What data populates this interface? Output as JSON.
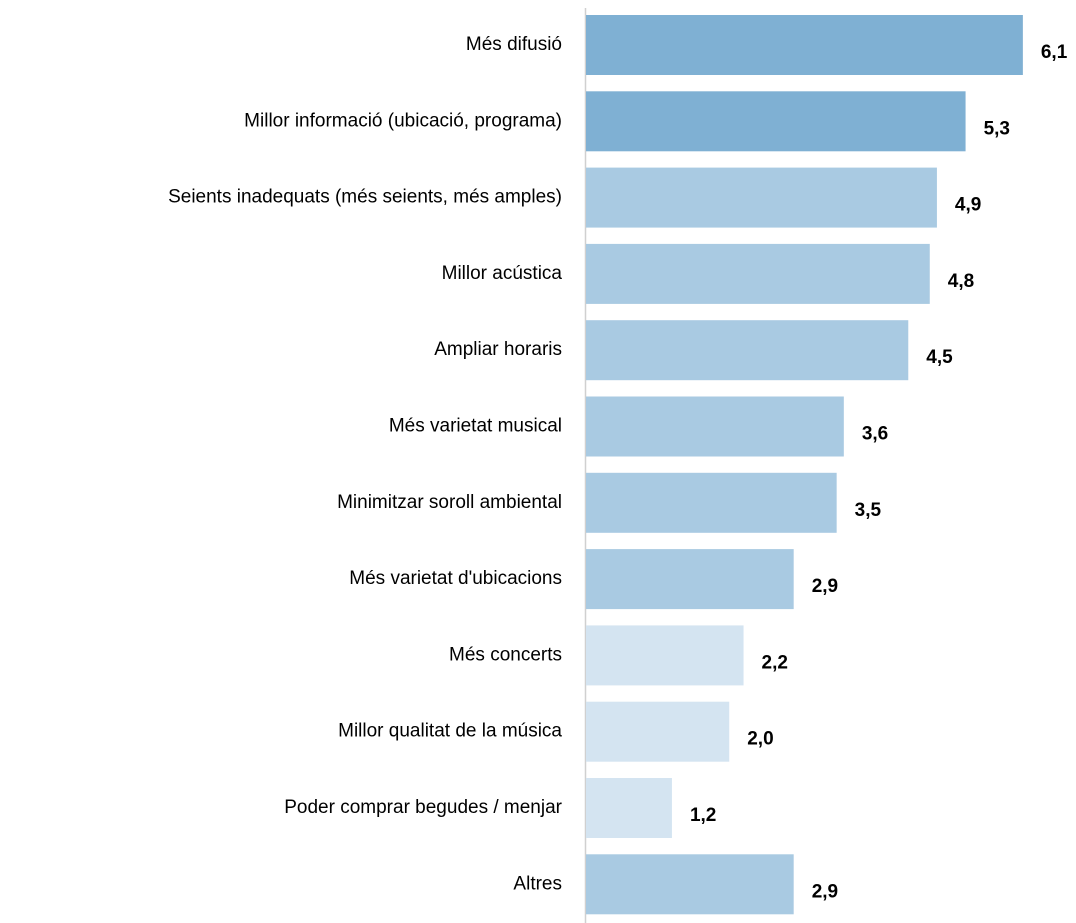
{
  "chart_data": {
    "type": "barh",
    "categories": [
      "Més difusió",
      "Millor informació (ubicació, programa)",
      "Seients inadequats (més seients, més amples)",
      "Millor acústica",
      "Ampliar horaris",
      "Més varietat musical",
      "Minimitzar soroll ambiental",
      "Més varietat d'ubicacions",
      "Més concerts",
      "Millor qualitat de la música",
      "Poder comprar begudes / menjar",
      "Altres"
    ],
    "values": [
      6.1,
      5.3,
      4.9,
      4.8,
      4.5,
      3.6,
      3.5,
      2.9,
      2.2,
      2.0,
      1.2,
      2.9
    ],
    "value_labels": [
      "6,1",
      "5,3",
      "4,9",
      "4,8",
      "4,5",
      "3,6",
      "3,5",
      "2,9",
      "2,2",
      "2,0",
      "1,2",
      "2,9"
    ],
    "colors": [
      "#7fb0d3",
      "#7fb0d3",
      "#a9cae2",
      "#a9cae2",
      "#a9cae2",
      "#a9cae2",
      "#a9cae2",
      "#a9cae2",
      "#d4e4f1",
      "#d4e4f1",
      "#d4e4f1",
      "#a9cae2"
    ],
    "xlim": [
      0,
      6.8
    ]
  }
}
